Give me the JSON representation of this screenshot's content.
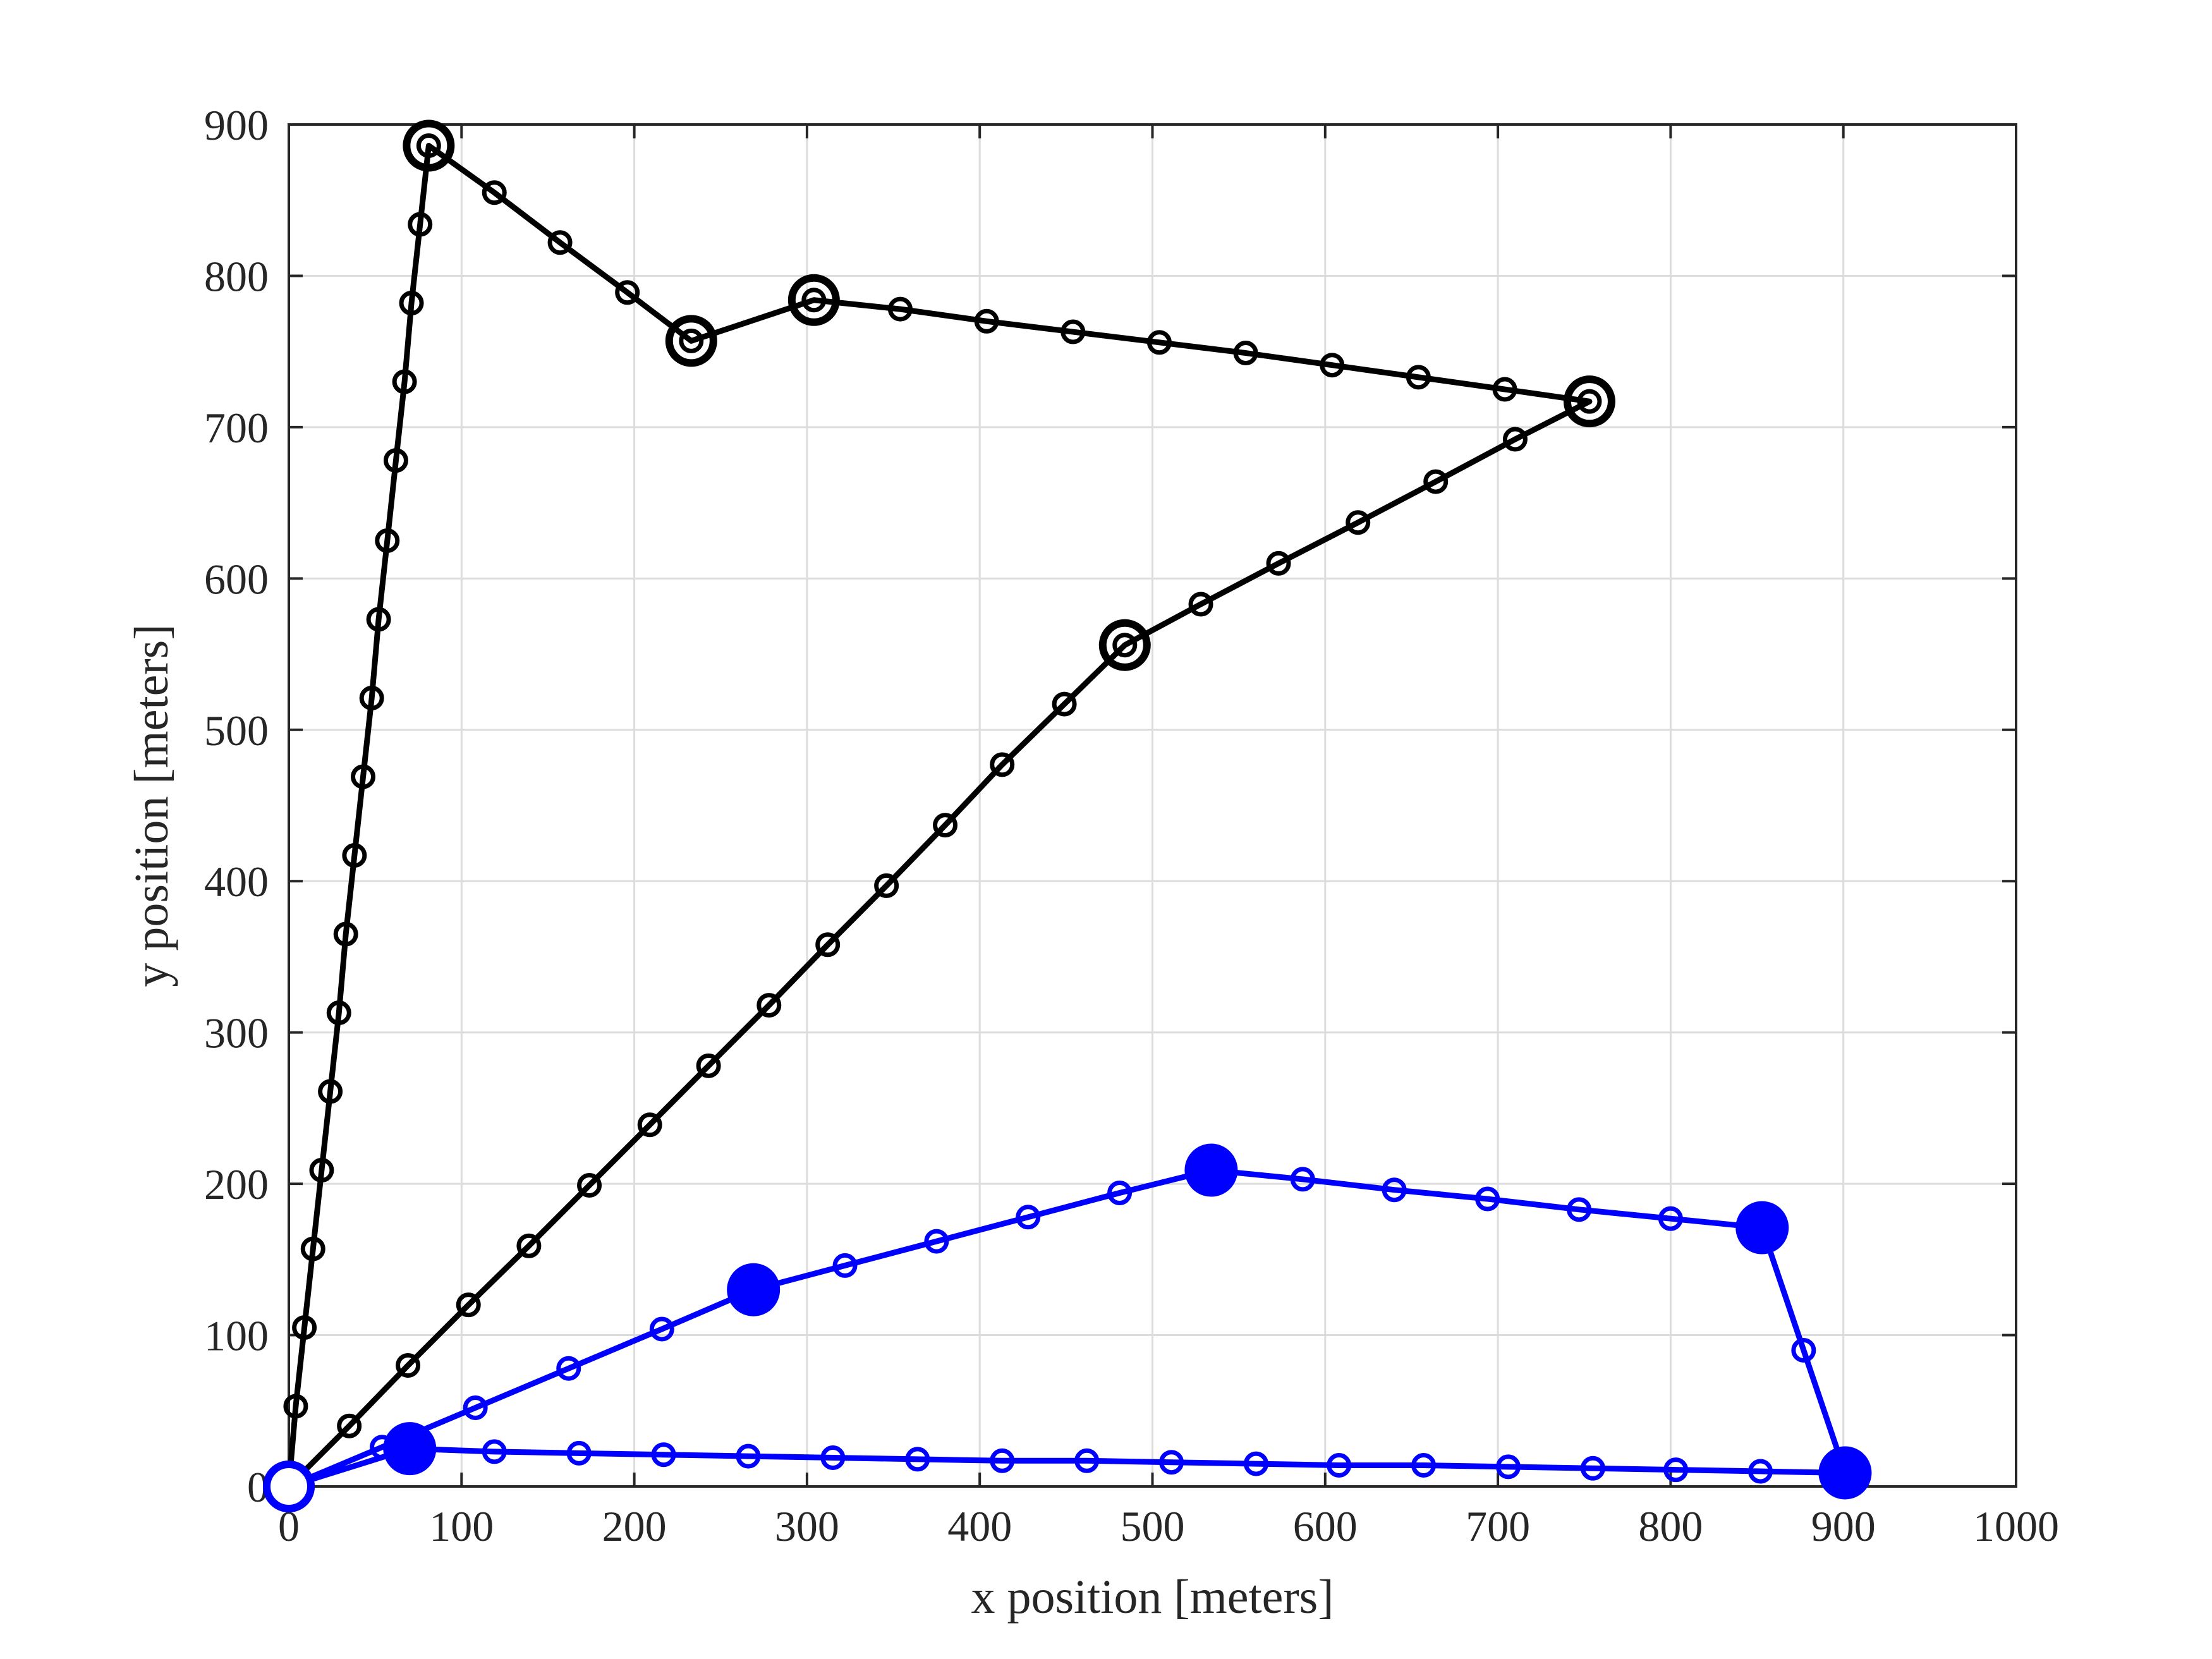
{
  "chart_data": {
    "type": "line",
    "title": "",
    "xlabel": "x position [meters]",
    "ylabel": "y position [meters]",
    "xlim": [
      0,
      1000
    ],
    "ylim": [
      0,
      900
    ],
    "xticks": [
      "0",
      "100",
      "200",
      "300",
      "400",
      "500",
      "600",
      "700",
      "800",
      "900",
      "1000"
    ],
    "yticks": [
      "0",
      "100",
      "200",
      "300",
      "400",
      "500",
      "600",
      "700",
      "800",
      "900"
    ],
    "grid": true,
    "legend": "none",
    "series": [
      {
        "color": "#000000",
        "marker": "open-circle",
        "points": [
          [
            0,
            0
          ],
          [
            4,
            53
          ],
          [
            9,
            105
          ],
          [
            14,
            157
          ],
          [
            19,
            209
          ],
          [
            24,
            261
          ],
          [
            29,
            313
          ],
          [
            33,
            365
          ],
          [
            38,
            417
          ],
          [
            43,
            469
          ],
          [
            48,
            521
          ],
          [
            52,
            573
          ],
          [
            57,
            625
          ],
          [
            62,
            678
          ],
          [
            67,
            730
          ],
          [
            71,
            782
          ],
          [
            76,
            834
          ],
          [
            81,
            886
          ],
          [
            119,
            855
          ],
          [
            157,
            822
          ],
          [
            196,
            789
          ],
          [
            233,
            757
          ],
          [
            304,
            784
          ],
          [
            354,
            778
          ],
          [
            404,
            770
          ],
          [
            454,
            763
          ],
          [
            504,
            756
          ],
          [
            554,
            749
          ],
          [
            604,
            741
          ],
          [
            654,
            733
          ],
          [
            704,
            725
          ],
          [
            753,
            717
          ],
          [
            710,
            692
          ],
          [
            664,
            664
          ],
          [
            619,
            637
          ],
          [
            573,
            610
          ],
          [
            528,
            583
          ],
          [
            484,
            556
          ],
          [
            449,
            517
          ],
          [
            413,
            477
          ],
          [
            380,
            437
          ],
          [
            346,
            397
          ],
          [
            312,
            358
          ],
          [
            278,
            318
          ],
          [
            243,
            278
          ],
          [
            209,
            239
          ],
          [
            174,
            199
          ],
          [
            139,
            159
          ],
          [
            104,
            120
          ],
          [
            69,
            80
          ],
          [
            35,
            40
          ],
          [
            0,
            0
          ]
        ],
        "big_markers": [
          [
            0,
            0
          ],
          [
            81,
            886
          ],
          [
            233,
            757
          ],
          [
            304,
            784
          ],
          [
            753,
            717
          ],
          [
            484,
            556
          ]
        ]
      },
      {
        "color": "#0000ff",
        "marker": "open-circle",
        "points": [
          [
            0,
            0
          ],
          [
            70,
            25
          ],
          [
            119,
            23
          ],
          [
            168,
            22
          ],
          [
            217,
            21
          ],
          [
            266,
            20
          ],
          [
            315,
            19
          ],
          [
            364,
            18
          ],
          [
            413,
            17
          ],
          [
            462,
            17
          ],
          [
            511,
            16
          ],
          [
            560,
            15
          ],
          [
            608,
            14
          ],
          [
            657,
            14
          ],
          [
            706,
            13
          ],
          [
            755,
            12
          ],
          [
            803,
            11
          ],
          [
            852,
            10
          ],
          [
            901,
            9
          ],
          [
            877,
            90
          ],
          [
            853,
            171
          ],
          [
            800,
            177
          ],
          [
            747,
            183
          ],
          [
            694,
            190
          ],
          [
            640,
            196
          ],
          [
            587,
            203
          ],
          [
            534,
            209
          ],
          [
            481,
            194
          ],
          [
            428,
            178
          ],
          [
            375,
            162
          ],
          [
            322,
            146
          ],
          [
            269,
            130
          ],
          [
            216,
            104
          ],
          [
            162,
            78
          ],
          [
            108,
            52
          ],
          [
            54,
            26
          ],
          [
            0,
            0
          ]
        ],
        "big_markers": [
          [
            70,
            25
          ],
          [
            901,
            9
          ],
          [
            853,
            171
          ],
          [
            534,
            209
          ],
          [
            269,
            130
          ]
        ],
        "start_marker": [
          0,
          0
        ]
      }
    ]
  }
}
